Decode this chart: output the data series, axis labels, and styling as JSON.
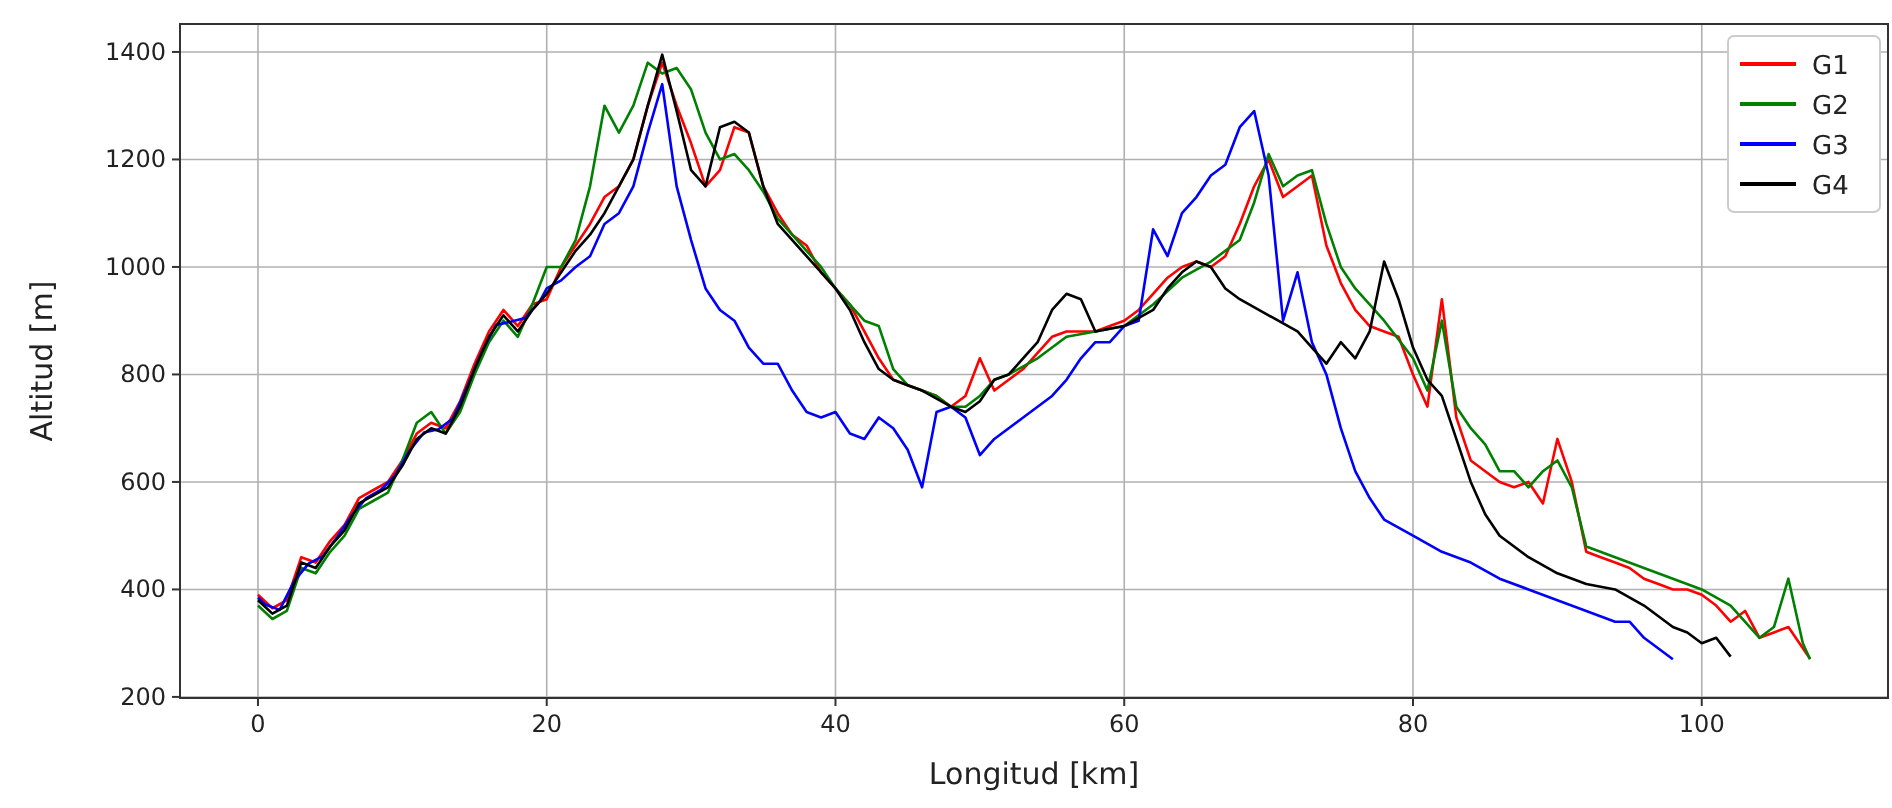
{
  "chart_data": {
    "type": "line",
    "xlabel": "Longitud [km]",
    "ylabel": "Altitud [m]",
    "xlim": [
      -5.4,
      112.9
    ],
    "ylim": [
      198,
      1452
    ],
    "xticks": [
      0,
      20,
      40,
      60,
      80,
      100
    ],
    "yticks": [
      200,
      400,
      600,
      800,
      1000,
      1200,
      1400
    ],
    "grid": true,
    "legend": "top right",
    "line_style": "solid",
    "marker": "none",
    "series": [
      {
        "name": "G1",
        "color": "#ff0000",
        "x": [
          0,
          1,
          2,
          3,
          4,
          5,
          6,
          7,
          8,
          9,
          10,
          11,
          12,
          13,
          14,
          15,
          16,
          17,
          18,
          19,
          20,
          21,
          22,
          23,
          24,
          25,
          26,
          27,
          28,
          29,
          30,
          31,
          32,
          33,
          34,
          35,
          36,
          37,
          38,
          39,
          40,
          41,
          42,
          43,
          44,
          45,
          46,
          47,
          48,
          49,
          50,
          51,
          52,
          53,
          54,
          55,
          56,
          57,
          58,
          59,
          60,
          61,
          62,
          63,
          64,
          65,
          66,
          67,
          68,
          69,
          70,
          71,
          72,
          73,
          74,
          75,
          76,
          77,
          78,
          79,
          80,
          81,
          82,
          83,
          84,
          85,
          86,
          87,
          88,
          89,
          90,
          91,
          92,
          93,
          94,
          95,
          96,
          97,
          98,
          99,
          100,
          101,
          102,
          103,
          104,
          105,
          106,
          107.5
        ],
        "values": [
          390,
          365,
          380,
          460,
          450,
          490,
          520,
          570,
          585,
          600,
          640,
          690,
          710,
          700,
          750,
          820,
          880,
          920,
          890,
          930,
          940,
          1000,
          1040,
          1080,
          1130,
          1150,
          1200,
          1300,
          1380,
          1300,
          1230,
          1150,
          1180,
          1260,
          1250,
          1150,
          1100,
          1060,
          1040,
          990,
          960,
          930,
          880,
          830,
          790,
          780,
          770,
          760,
          740,
          760,
          830,
          770,
          790,
          810,
          840,
          870,
          880,
          880,
          880,
          890,
          900,
          920,
          950,
          980,
          1000,
          1010,
          1000,
          1020,
          1080,
          1150,
          1200,
          1130,
          1150,
          1170,
          1040,
          970,
          920,
          890,
          880,
          870,
          800,
          740,
          940,
          720,
          640,
          620,
          600,
          590,
          600,
          560,
          680,
          600,
          470,
          460,
          450,
          440,
          420,
          410,
          400,
          400,
          390,
          370,
          340,
          360,
          310,
          320,
          330,
          271
        ]
      },
      {
        "name": "G2",
        "color": "#008000",
        "x": [
          0,
          1,
          2,
          3,
          4,
          5,
          6,
          7,
          8,
          9,
          10,
          11,
          12,
          13,
          14,
          15,
          16,
          17,
          18,
          19,
          20,
          21,
          22,
          23,
          24,
          25,
          26,
          27,
          28,
          29,
          30,
          31,
          32,
          33,
          34,
          35,
          36,
          37,
          38,
          39,
          40,
          41,
          42,
          43,
          44,
          45,
          46,
          47,
          48,
          49,
          50,
          51,
          52,
          54,
          56,
          58,
          60,
          62,
          64,
          66,
          68,
          69,
          70,
          71,
          72,
          73,
          74,
          75,
          76,
          78,
          80,
          81,
          82,
          83,
          84,
          85,
          86,
          87,
          88,
          89,
          90,
          91,
          92,
          94,
          96,
          98,
          100,
          102,
          104,
          105,
          106,
          107,
          107.5
        ],
        "values": [
          370,
          345,
          360,
          440,
          430,
          470,
          500,
          550,
          565,
          580,
          640,
          710,
          730,
          690,
          730,
          800,
          860,
          900,
          870,
          930,
          1000,
          1000,
          1050,
          1150,
          1300,
          1250,
          1300,
          1380,
          1360,
          1370,
          1330,
          1250,
          1200,
          1210,
          1180,
          1140,
          1090,
          1060,
          1030,
          1000,
          960,
          930,
          900,
          890,
          810,
          780,
          770,
          760,
          740,
          740,
          760,
          790,
          800,
          830,
          870,
          880,
          890,
          930,
          980,
          1010,
          1050,
          1120,
          1210,
          1150,
          1170,
          1180,
          1080,
          1000,
          960,
          900,
          830,
          770,
          900,
          740,
          700,
          670,
          620,
          620,
          590,
          620,
          640,
          590,
          480,
          460,
          440,
          420,
          400,
          370,
          310,
          330,
          420,
          300,
          270
        ]
      },
      {
        "name": "G3",
        "color": "#0000ff",
        "x": [
          0,
          0.5,
          1.5,
          2.5,
          3.5,
          4.5,
          5.5,
          6.5,
          7.5,
          8.5,
          9.5,
          10.5,
          11.5,
          12.5,
          13.5,
          14.5,
          15.5,
          16.5,
          17.5,
          18.5,
          19.5,
          20,
          21,
          22,
          23,
          24,
          25,
          26,
          27,
          28,
          29,
          30,
          31,
          32,
          33,
          34,
          35,
          36,
          37,
          38,
          39,
          40,
          41,
          42,
          43,
          44,
          45,
          46,
          47,
          48,
          49,
          50,
          51,
          52,
          53,
          54,
          55,
          56,
          57,
          58,
          59,
          60,
          61,
          62,
          63,
          64,
          65,
          66,
          67,
          68,
          69,
          70,
          71,
          72,
          73,
          74,
          75,
          76,
          77,
          78,
          80,
          82,
          84,
          86,
          88,
          90,
          92,
          94,
          95,
          96,
          97,
          98
        ],
        "values": [
          385,
          372,
          362,
          415,
          448,
          462,
          498,
          538,
          570,
          585,
          612,
          658,
          692,
          698,
          718,
          778,
          842,
          892,
          898,
          905,
          935,
          960,
          975,
          1000,
          1020,
          1080,
          1100,
          1150,
          1250,
          1340,
          1150,
          1050,
          960,
          920,
          900,
          850,
          820,
          820,
          770,
          730,
          720,
          730,
          690,
          680,
          720,
          700,
          660,
          590,
          730,
          740,
          720,
          650,
          680,
          700,
          720,
          740,
          760,
          790,
          830,
          860,
          860,
          890,
          900,
          1070,
          1020,
          1100,
          1130,
          1170,
          1190,
          1260,
          1290,
          1170,
          900,
          990,
          860,
          800,
          700,
          620,
          570,
          530,
          500,
          470,
          450,
          420,
          400,
          380,
          360,
          340,
          340,
          310,
          290,
          270
        ]
      },
      {
        "name": "G4",
        "color": "#000000",
        "x": [
          0,
          1,
          2,
          3,
          4,
          5,
          6,
          7,
          8,
          9,
          10,
          11,
          12,
          13,
          14,
          15,
          16,
          17,
          18,
          19,
          20,
          21,
          22,
          23,
          24,
          25,
          26,
          27,
          28,
          29,
          30,
          31,
          32,
          33,
          34,
          35,
          36,
          38,
          40,
          41,
          42,
          43,
          44,
          45,
          46,
          48,
          49,
          50,
          51,
          52,
          54,
          55,
          56,
          57,
          58,
          60,
          62,
          63,
          64,
          65,
          66,
          67,
          68,
          70,
          72,
          73,
          74,
          75,
          76,
          77,
          78,
          79,
          80,
          81,
          82,
          83,
          84,
          85,
          86,
          88,
          90,
          92,
          94,
          96,
          98,
          99,
          100,
          101,
          102
        ],
        "values": [
          380,
          355,
          370,
          450,
          440,
          480,
          510,
          560,
          575,
          590,
          630,
          680,
          700,
          690,
          740,
          810,
          870,
          910,
          880,
          920,
          950,
          990,
          1030,
          1060,
          1100,
          1150,
          1200,
          1300,
          1395,
          1290,
          1180,
          1150,
          1260,
          1270,
          1250,
          1150,
          1080,
          1020,
          960,
          920,
          860,
          810,
          790,
          780,
          770,
          740,
          730,
          750,
          790,
          800,
          860,
          920,
          950,
          940,
          880,
          890,
          920,
          960,
          990,
          1010,
          1000,
          960,
          940,
          910,
          880,
          850,
          820,
          860,
          830,
          880,
          1010,
          940,
          850,
          790,
          760,
          680,
          600,
          540,
          500,
          460,
          430,
          410,
          400,
          370,
          330,
          320,
          300,
          310,
          275
        ]
      }
    ]
  }
}
